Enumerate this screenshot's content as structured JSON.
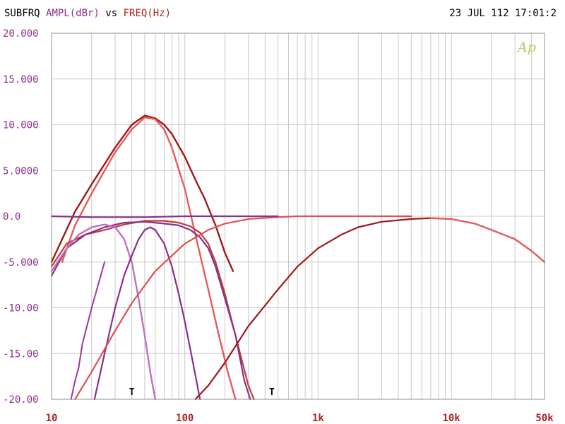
{
  "header": {
    "prefix": "SUBFRQ",
    "ylabel": "AMPL(dBr)",
    "vs": "vs",
    "xlabel": "FREQ(Hz)",
    "timestamp": "23 JUL 112 17:01:2"
  },
  "logo": "Ap",
  "markers": [
    "T",
    "T"
  ],
  "colors": {
    "label_purple": "#8b2f8b",
    "label_red": "#b22222",
    "grid": "#c8c8c8",
    "axis": "#909090"
  },
  "chart_data": {
    "type": "line",
    "xscale": "log",
    "xlim": [
      10,
      50000
    ],
    "ylim": [
      -20,
      20
    ],
    "x_ticks": [
      {
        "value": 10,
        "label": "10"
      },
      {
        "value": 100,
        "label": "100"
      },
      {
        "value": 1000,
        "label": "1k"
      },
      {
        "value": 10000,
        "label": "10k"
      },
      {
        "value": 50000,
        "label": "50k"
      }
    ],
    "y_ticks": [
      {
        "value": 20,
        "label": "20.000"
      },
      {
        "value": 15,
        "label": "15.000"
      },
      {
        "value": 10,
        "label": "10.000"
      },
      {
        "value": 5,
        "label": "5.0000"
      },
      {
        "value": 0,
        "label": "0.0"
      },
      {
        "value": -5,
        "label": "-5.000"
      },
      {
        "value": -10,
        "label": "-10.00"
      },
      {
        "value": -15,
        "label": "-15.00"
      },
      {
        "value": -20,
        "label": "-20.00"
      }
    ],
    "marker_freqs": [
      40,
      450
    ],
    "grid": true,
    "series": [
      {
        "color": "#a01818",
        "width": 2.4,
        "x": [
          10,
          15,
          20,
          30,
          40,
          50,
          60,
          70,
          80,
          100,
          120,
          140,
          170,
          200,
          230
        ],
        "y": [
          -5,
          0.5,
          3.5,
          7.5,
          10,
          11,
          10.7,
          10,
          9,
          6.5,
          4,
          2,
          -1,
          -4,
          -6
        ]
      },
      {
        "color": "#e85a5a",
        "width": 2.4,
        "x": [
          12,
          15,
          20,
          30,
          40,
          50,
          60,
          70,
          80,
          100,
          120,
          150,
          180,
          210,
          240
        ],
        "y": [
          -5,
          -1,
          2.5,
          7,
          9.5,
          10.8,
          10.6,
          9.5,
          7.5,
          3,
          -2,
          -8,
          -13,
          -17,
          -20
        ]
      },
      {
        "color": "#bb3d3d",
        "width": 2.2,
        "x": [
          10,
          13,
          18,
          25,
          35,
          50,
          70,
          90,
          110,
          130,
          150,
          170,
          200,
          230,
          260,
          300,
          330
        ],
        "y": [
          -5.5,
          -3,
          -2,
          -1.5,
          -0.9,
          -0.5,
          -0.5,
          -0.7,
          -1.1,
          -1.8,
          -3,
          -5,
          -8.5,
          -12,
          -15,
          -18.5,
          -20
        ]
      },
      {
        "color": "#8b2f8b",
        "width": 2.2,
        "x": [
          10,
          13,
          18,
          25,
          35,
          50,
          70,
          90,
          110,
          130,
          150,
          170,
          200,
          240,
          280,
          310
        ],
        "y": [
          -6.5,
          -3.5,
          -2,
          -1.2,
          -0.7,
          -0.6,
          -0.8,
          -1,
          -1.5,
          -2.3,
          -3.5,
          -5.5,
          -9,
          -13,
          -18,
          -20
        ]
      },
      {
        "color": "#c070c0",
        "width": 2.4,
        "x": [
          10,
          13,
          16,
          20,
          25,
          30,
          35,
          40,
          45,
          50,
          55,
          60
        ],
        "y": [
          -6,
          -3.5,
          -2,
          -1.2,
          -0.9,
          -1.2,
          -2.5,
          -5,
          -9,
          -13,
          -17,
          -20
        ]
      },
      {
        "color": "#8b2f8b",
        "width": 2.2,
        "x": [
          21,
          25,
          30,
          35,
          40,
          45,
          50,
          55,
          60,
          70,
          80,
          90,
          100,
          115,
          130
        ],
        "y": [
          -20,
          -15,
          -10,
          -6.5,
          -4.3,
          -2.5,
          -1.5,
          -1.2,
          -1.5,
          -3,
          -5.5,
          -8.5,
          -11.5,
          -16,
          -20
        ]
      },
      {
        "color": "#9a3a9a",
        "width": 2.0,
        "x": [
          14,
          15,
          16,
          17,
          20,
          25
        ],
        "y": [
          -20,
          -18,
          -16.5,
          -14,
          -10,
          -5
        ]
      },
      {
        "color": "#e05050",
        "width": 2.2,
        "x": [
          15,
          20,
          30,
          40,
          60,
          100,
          150,
          200,
          300,
          500,
          700,
          1000,
          1500,
          2000,
          5000
        ],
        "y": [
          -20,
          -17,
          -12.5,
          -9.5,
          -6,
          -3,
          -1.5,
          -0.8,
          -0.3,
          -0.1,
          0,
          0,
          0,
          0,
          0
        ]
      },
      {
        "color": "#8b2f8b",
        "width": 2.2,
        "x": [
          10,
          20,
          50,
          100,
          200,
          300,
          400,
          500
        ],
        "y": [
          0,
          -0.1,
          -0.1,
          0,
          0,
          0,
          0,
          0
        ]
      },
      {
        "color": "#a01818",
        "width": 2.2,
        "x": [
          120,
          150,
          200,
          300,
          500,
          700,
          1000,
          1500,
          2000,
          3000,
          5000,
          7000,
          10000,
          15000,
          20000,
          30000,
          40000,
          50000
        ],
        "y": [
          -20,
          -18.5,
          -16,
          -12,
          -8,
          -5.5,
          -3.5,
          -2,
          -1.2,
          -0.6,
          -0.3,
          -0.2,
          -0.3,
          -0.8,
          -1.5,
          -2.5,
          -3.8,
          -5
        ]
      },
      {
        "color": "#e85a5a",
        "width": 2.2,
        "x": [
          7000,
          10000,
          15000,
          20000,
          30000,
          40000,
          50000
        ],
        "y": [
          -0.2,
          -0.3,
          -0.8,
          -1.5,
          -2.5,
          -3.8,
          -5
        ]
      }
    ]
  }
}
